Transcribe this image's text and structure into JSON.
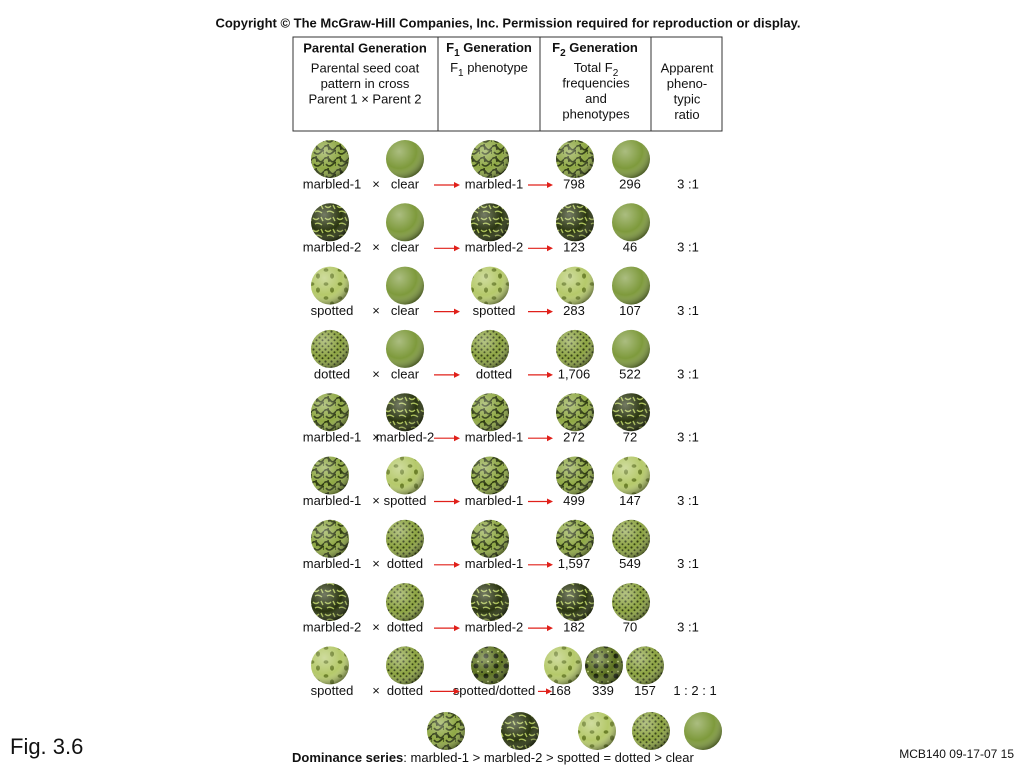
{
  "copyright": "Copyright © The McGraw-Hill Companies, Inc. Permission required for reproduction or display.",
  "header": {
    "parental": {
      "title": "Parental Generation",
      "lines": [
        "Parental seed coat",
        "pattern in cross",
        "Parent 1 × Parent 2"
      ]
    },
    "f1": {
      "title": [
        "F",
        "1",
        " Generation"
      ],
      "lines": [
        [
          "F",
          "1",
          " phenotype"
        ]
      ]
    },
    "f2": {
      "title": [
        "F",
        "2",
        " Generation"
      ],
      "lines": [
        [
          "Total F",
          "2",
          ""
        ],
        [
          "frequencies",
          "",
          ""
        ],
        [
          "and",
          "",
          ""
        ],
        [
          "phenotypes",
          "",
          ""
        ]
      ]
    },
    "ratio": {
      "lines": [
        "Apparent",
        "pheno-",
        "typic",
        "ratio"
      ]
    }
  },
  "rows": [
    {
      "parent1": "marbled-1",
      "cross": "×",
      "parent2": "clear",
      "f1": "marbled-1",
      "f2": [
        "798",
        "296"
      ],
      "ratio": "3 :1"
    },
    {
      "parent1": "marbled-2",
      "cross": "×",
      "parent2": "clear",
      "f1": "marbled-2",
      "f2": [
        "123",
        "46"
      ],
      "ratio": "3 :1"
    },
    {
      "parent1": "spotted",
      "cross": "×",
      "parent2": "clear",
      "f1": "spotted",
      "f2": [
        "283",
        "107"
      ],
      "ratio": "3 :1"
    },
    {
      "parent1": "dotted",
      "cross": "×",
      "parent2": "clear",
      "f1": "dotted",
      "f2": [
        "1,706",
        "522"
      ],
      "ratio": "3 :1"
    },
    {
      "parent1": "marbled-1",
      "cross": "×",
      "parent2": "marbled-2",
      "f1": "marbled-1",
      "f2": [
        "272",
        "72"
      ],
      "ratio": "3 :1"
    },
    {
      "parent1": "marbled-1",
      "cross": "×",
      "parent2": "spotted",
      "f1": "marbled-1",
      "f2": [
        "499",
        "147"
      ],
      "ratio": "3 :1"
    },
    {
      "parent1": "marbled-1",
      "cross": "×",
      "parent2": "dotted",
      "f1": "marbled-1",
      "f2": [
        "1,597",
        "549"
      ],
      "ratio": "3 :1"
    },
    {
      "parent1": "marbled-2",
      "cross": "×",
      "parent2": "dotted",
      "f1": "marbled-2",
      "f2": [
        "182",
        "70"
      ],
      "ratio": "3 :1"
    },
    {
      "parent1": "spotted",
      "cross": "×",
      "parent2": "dotted",
      "f1": "spotted/dotted",
      "f2": [
        "168",
        "339",
        "157"
      ],
      "ratio": "1 : 2 : 1"
    }
  ],
  "dominance": {
    "label": "Dominance series",
    "text": ": marbled-1 > marbled-2 > spotted = dotted > clear"
  },
  "figure_label": "Fig. 3.6",
  "footer": "MCB140 09-17-07 15"
}
